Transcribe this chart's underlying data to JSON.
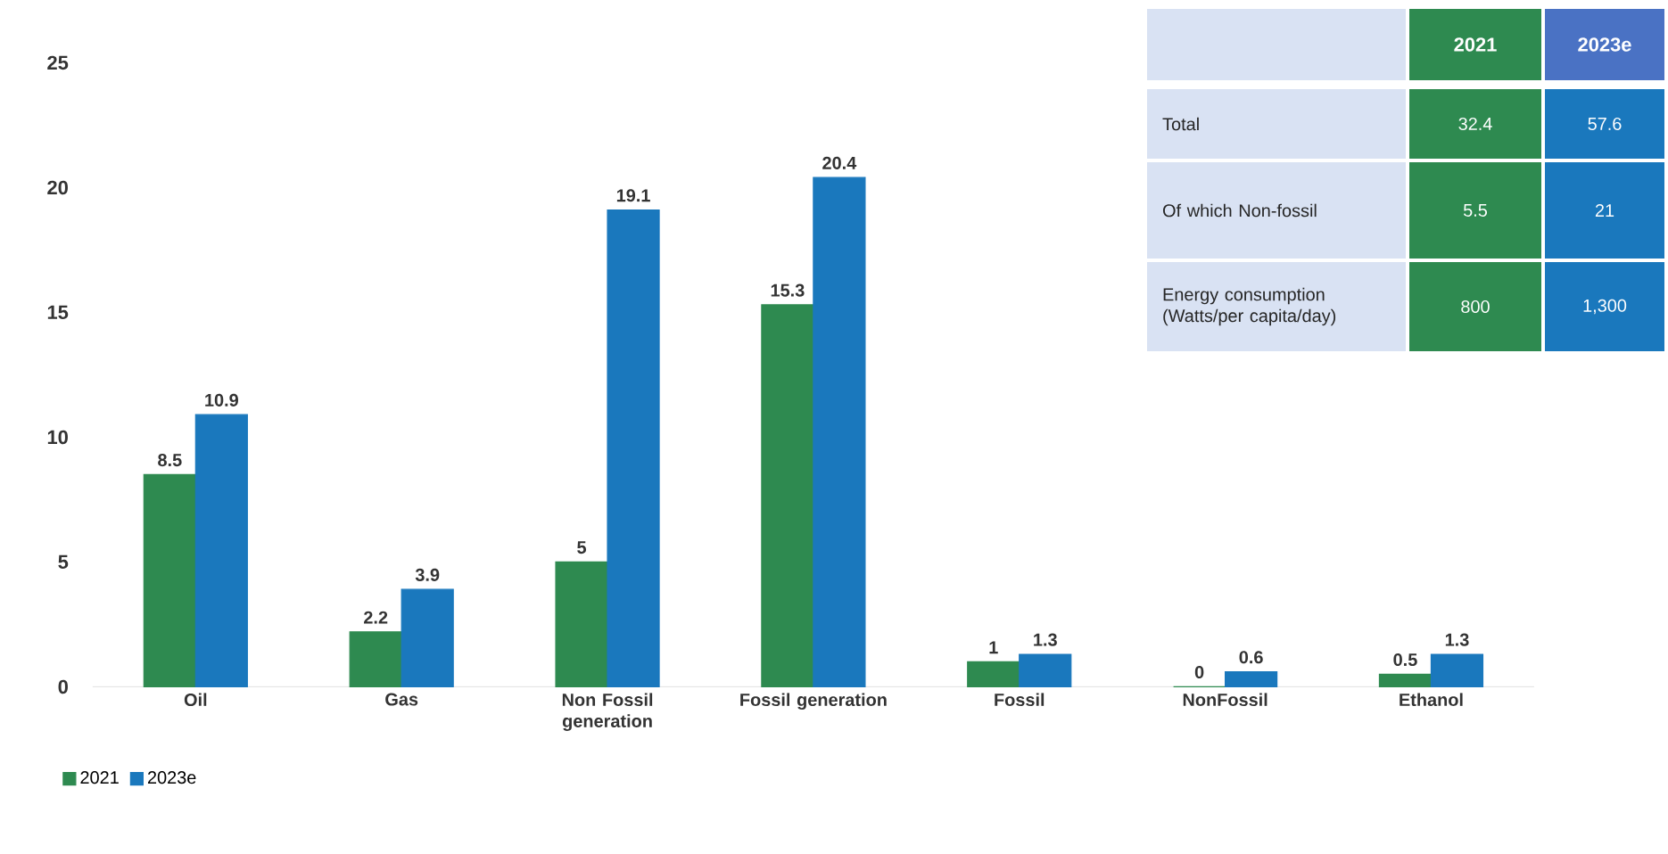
{
  "chart_data": {
    "type": "bar",
    "categories": [
      "Oil",
      "Gas",
      "Non Fossil generation",
      "Fossil generation",
      "Fossil",
      "NonFossil",
      "Ethanol"
    ],
    "series": [
      {
        "name": "2021",
        "color": "#2e8a50",
        "values": [
          8.5,
          2.2,
          5,
          15.3,
          1,
          0,
          0.5
        ]
      },
      {
        "name": "2023e",
        "color": "#1a78bd",
        "values": [
          10.9,
          3.9,
          19.1,
          20.4,
          1.3,
          0.6,
          1.3
        ]
      }
    ],
    "ylim": [
      0,
      25
    ],
    "yticks": [
      0,
      5,
      10,
      15,
      20,
      25
    ],
    "data_labels": true,
    "legend": "bottom left",
    "grid": false,
    "annotations": [
      "2021",
      "2023e",
      "Total",
      "32.4",
      "57.6",
      "Of which Non-fossil",
      "5.5",
      "21",
      "Energy consumption (Watts/per capita/day)",
      "800",
      "1,300"
    ]
  }
}
